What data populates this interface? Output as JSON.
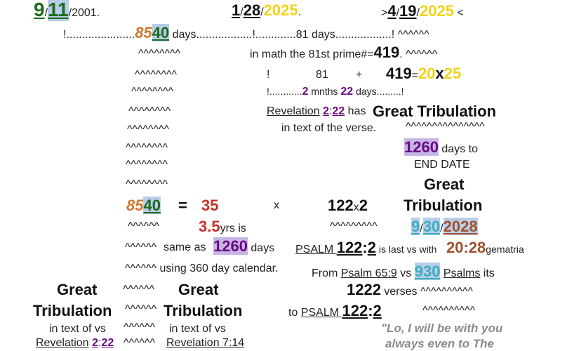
{
  "texts": [
    [
      "9",
      "/",
      "11",
      "/2001."
    ],
    [
      "1",
      "/",
      "28",
      "/",
      "2025",
      "."
    ],
    [
      ">",
      "4",
      "/",
      "19",
      "/",
      "2025",
      " <"
    ],
    [
      "!......................",
      "85",
      "40",
      " days..................!.............81 days..................! ^^^^^^"
    ],
    [
      "^^^^^^^^"
    ],
    [
      "in math the 81st prime#=",
      "419",
      ". ^^^^^^"
    ],
    [
      "^^^^^^^^"
    ],
    [
      "!"
    ],
    [
      "81"
    ],
    [
      "+"
    ],
    [
      "419",
      "=",
      "20",
      "x",
      "25"
    ],
    [
      "^^^^^^^^"
    ],
    [
      "!............",
      "2",
      " mnths ",
      "22",
      " days.........!"
    ],
    [
      "^^^^^^^^"
    ],
    [
      "Revelation",
      " ",
      "2",
      ":",
      "22",
      " has "
    ],
    [
      "Great Tribulation"
    ],
    [
      "in text of the verse."
    ],
    [
      "^^^^^^^^^^^^^^^"
    ],
    [
      "^^^^^^^^"
    ],
    [
      "^^^^^^^^"
    ],
    [
      "1260",
      " days to"
    ],
    [
      "END DATE"
    ],
    [
      "^^^^^^^^"
    ],
    [
      "^^^^^^^^"
    ],
    [
      "Great"
    ],
    [
      "85",
      "40"
    ],
    [
      "="
    ],
    [
      "35"
    ],
    [
      "x"
    ],
    [
      "122",
      "x",
      "2"
    ],
    [
      "Tribulation"
    ],
    [
      "^^^^^^"
    ],
    [
      "3.5",
      "yrs is"
    ],
    [
      "^^^^^^^^^"
    ],
    [
      "9",
      "/",
      "30",
      "/",
      "2028"
    ],
    [
      "^^^^^^"
    ],
    [
      "same as "
    ],
    [
      "1260",
      " days"
    ],
    [
      "PSALM",
      " ",
      "122",
      ":",
      "2",
      " is last vs with "
    ],
    [
      "20",
      ":",
      "28",
      "gematria"
    ],
    [
      "^^^^^^ using 360 day calendar."
    ],
    [
      "From ",
      "Psalm 65:9",
      " vs ",
      "930",
      " ",
      "Psalms",
      " its"
    ],
    [
      "Great"
    ],
    [
      "Tribulation"
    ],
    [
      "in text of vs"
    ],
    [
      "Revelation",
      " ",
      "2",
      ":",
      "22"
    ],
    [
      "^^^^^^"
    ],
    [
      "^^^^^^"
    ],
    [
      "^^^^^^"
    ],
    [
      "^^^^^^"
    ],
    [
      "Great"
    ],
    [
      "Tribulation"
    ],
    [
      "in text of vs"
    ],
    [
      "Revelation 7:14"
    ],
    [
      "1222",
      " verses ^^^^^^^^^^"
    ],
    [
      "to ",
      "PSALM ",
      "122",
      ":",
      "2"
    ],
    [
      "^^^^^^^^^^"
    ],
    [
      "\"Lo, I will be with you"
    ],
    [
      "always even to The"
    ]
  ]
}
